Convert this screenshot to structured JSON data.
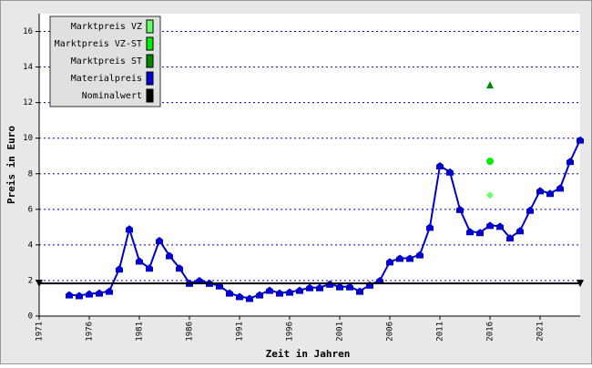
{
  "chart_data": {
    "type": "line",
    "xlabel": "Zeit in Jahren",
    "ylabel": "Preis in Euro",
    "xlim": [
      1971,
      2025
    ],
    "xticks": [
      1971,
      1976,
      1981,
      1986,
      1991,
      1996,
      2001,
      2006,
      2011,
      2016,
      2021
    ],
    "ylim": [
      0,
      17
    ],
    "yticks": [
      0,
      2,
      4,
      6,
      8,
      10,
      12,
      14,
      16
    ],
    "grid": true,
    "legend": "top-left",
    "series": [
      {
        "name": "Marktpreis VZ",
        "color": "#66ff66",
        "marker": "diamond",
        "line": false,
        "x": [
          2016
        ],
        "values": [
          6.8
        ]
      },
      {
        "name": "Marktpreis VZ-ST",
        "color": "#00ee00",
        "marker": "circle",
        "line": false,
        "x": [
          2016
        ],
        "values": [
          8.7
        ]
      },
      {
        "name": "Marktpreis ST",
        "color": "#008800",
        "marker": "triangle",
        "line": false,
        "x": [
          2016
        ],
        "values": [
          13.0
        ]
      },
      {
        "name": "Materialpreis",
        "color": "#0000cc",
        "marker": "pentagon",
        "line": true,
        "x": [
          1974,
          1975,
          1976,
          1977,
          1978,
          1979,
          1980,
          1981,
          1982,
          1983,
          1984,
          1985,
          1986,
          1987,
          1988,
          1989,
          1990,
          1991,
          1992,
          1993,
          1994,
          1995,
          1996,
          1997,
          1998,
          1999,
          2000,
          2001,
          2002,
          2003,
          2004,
          2005,
          2006,
          2007,
          2008,
          2009,
          2010,
          2011,
          2012,
          2013,
          2014,
          2015,
          2016,
          2017,
          2018,
          2019,
          2020,
          2021,
          2022,
          2023,
          2024,
          2025
        ],
        "values": [
          1.2,
          1.15,
          1.25,
          1.3,
          1.4,
          2.65,
          4.9,
          3.1,
          2.7,
          4.25,
          3.4,
          2.7,
          1.85,
          2.0,
          1.85,
          1.7,
          1.3,
          1.1,
          1.0,
          1.2,
          1.45,
          1.3,
          1.35,
          1.45,
          1.6,
          1.6,
          1.8,
          1.65,
          1.65,
          1.4,
          1.75,
          2.0,
          3.05,
          3.25,
          3.25,
          3.45,
          5.0,
          8.45,
          8.1,
          6.0,
          4.75,
          4.7,
          5.1,
          5.05,
          4.4,
          4.8,
          5.95,
          7.05,
          6.9,
          7.2,
          8.7,
          9.9
        ]
      },
      {
        "name": "Nominalwert",
        "color": "#000000",
        "marker": "triangle-down",
        "line": true,
        "x": [
          1971,
          2025
        ],
        "values": [
          1.84,
          1.84
        ]
      }
    ]
  }
}
